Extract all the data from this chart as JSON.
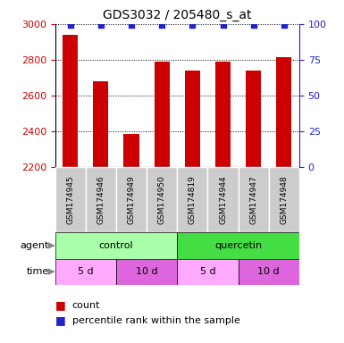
{
  "title": "GDS3032 / 205480_s_at",
  "samples": [
    "GSM174945",
    "GSM174946",
    "GSM174949",
    "GSM174950",
    "GSM174819",
    "GSM174944",
    "GSM174947",
    "GSM174948"
  ],
  "counts": [
    2940,
    2680,
    2385,
    2790,
    2740,
    2790,
    2740,
    2815
  ],
  "percentile_ranks": [
    99,
    99,
    99,
    99,
    99,
    99,
    99,
    99
  ],
  "ylim_left": [
    2200,
    3000
  ],
  "ylim_right": [
    0,
    100
  ],
  "yticks_left": [
    2200,
    2400,
    2600,
    2800,
    3000
  ],
  "yticks_right": [
    0,
    25,
    50,
    75,
    100
  ],
  "bar_color": "#cc0000",
  "dot_color": "#2222cc",
  "bar_width": 0.5,
  "agent_labels": [
    {
      "text": "control",
      "start": 0,
      "end": 3,
      "color": "#aaffaa"
    },
    {
      "text": "quercetin",
      "start": 4,
      "end": 7,
      "color": "#44dd44"
    }
  ],
  "time_labels": [
    {
      "text": "5 d",
      "start": 0,
      "end": 1,
      "color": "#ffaaff"
    },
    {
      "text": "10 d",
      "start": 2,
      "end": 3,
      "color": "#dd66dd"
    },
    {
      "text": "5 d",
      "start": 4,
      "end": 5,
      "color": "#ffaaff"
    },
    {
      "text": "10 d",
      "start": 6,
      "end": 7,
      "color": "#dd66dd"
    }
  ],
  "legend_count_color": "#cc0000",
  "legend_dot_color": "#2222cc",
  "left_tick_color": "#cc0000",
  "right_tick_color": "#2222cc",
  "grid_color": "#000000",
  "sample_band_color": "#cccccc",
  "sample_band_edge": "#999999",
  "background_color": "#ffffff",
  "agent_arrow_label": "agent",
  "time_arrow_label": "time"
}
